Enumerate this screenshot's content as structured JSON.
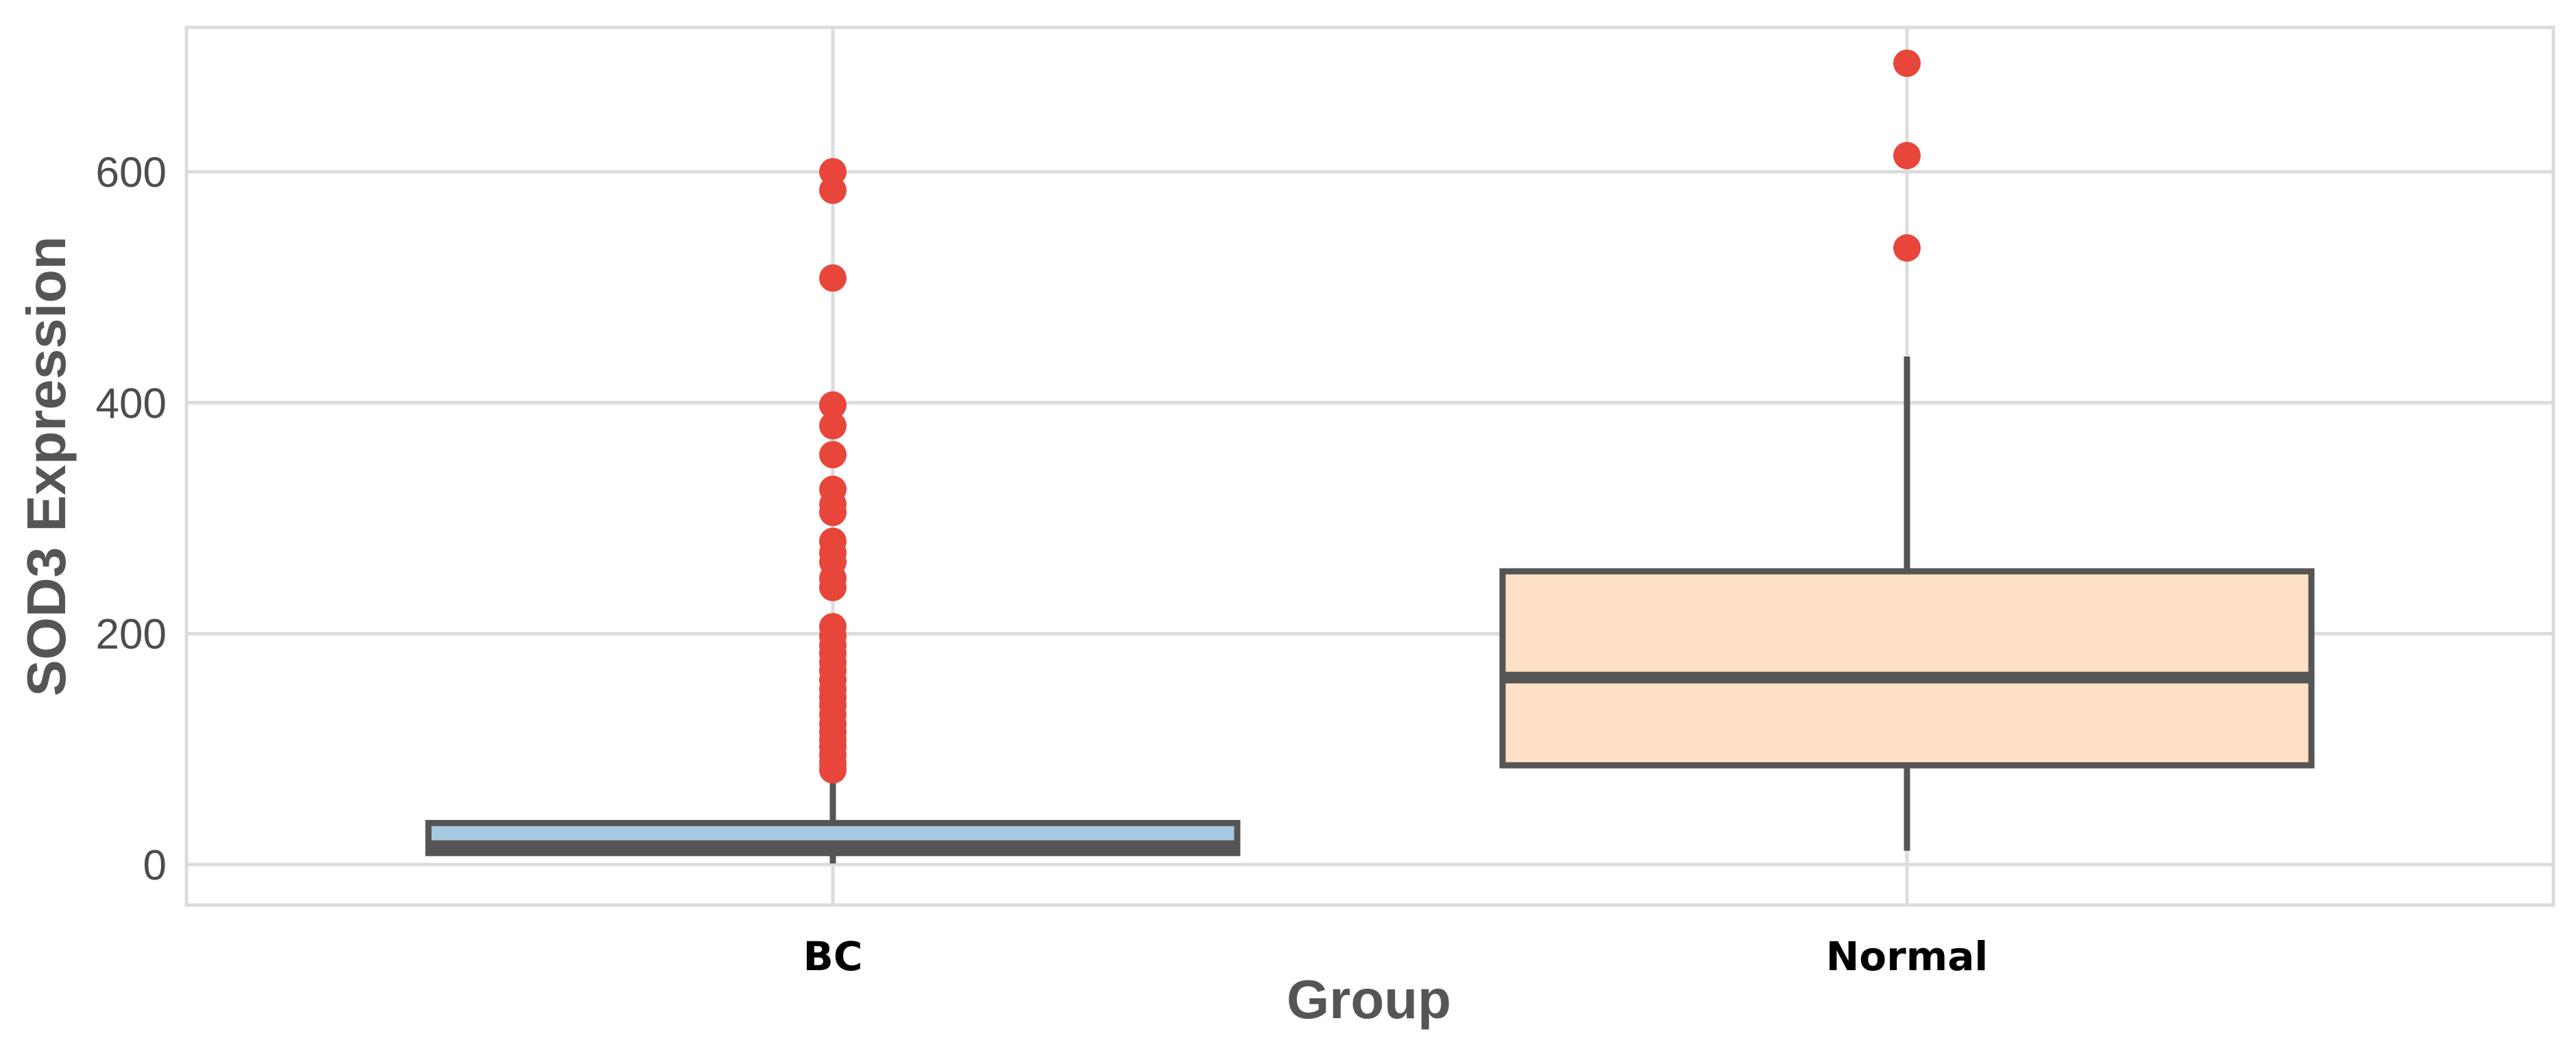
{
  "chart_data": {
    "type": "box",
    "xlabel": "Group",
    "ylabel": "SOD3 Expression",
    "categories": [
      "BC",
      "Normal"
    ],
    "ylim": [
      -35,
      725
    ],
    "yticks": [
      0,
      200,
      400,
      600
    ],
    "grid": true,
    "colors": {
      "box_fills": [
        "#a6c8e0",
        "#fde0c5"
      ],
      "box_lines": "#555555",
      "outliers": "#e8463a",
      "grid": "#dcdcdc"
    },
    "boxes": [
      {
        "category": "BC",
        "whisker_low": 1,
        "q1": 10,
        "median": 16,
        "q3": 36,
        "whisker_high": 78,
        "outliers": [
          82,
          88,
          95,
          102,
          108,
          115,
          122,
          130,
          138,
          145,
          152,
          160,
          168,
          175,
          183,
          190,
          198,
          206,
          240,
          248,
          262,
          270,
          280,
          305,
          312,
          325,
          355,
          380,
          398,
          508,
          584,
          600
        ]
      },
      {
        "category": "Normal",
        "whisker_low": 12,
        "q1": 86,
        "median": 162,
        "q3": 254,
        "whisker_high": 440,
        "outliers": [
          534,
          614,
          694
        ]
      }
    ]
  }
}
